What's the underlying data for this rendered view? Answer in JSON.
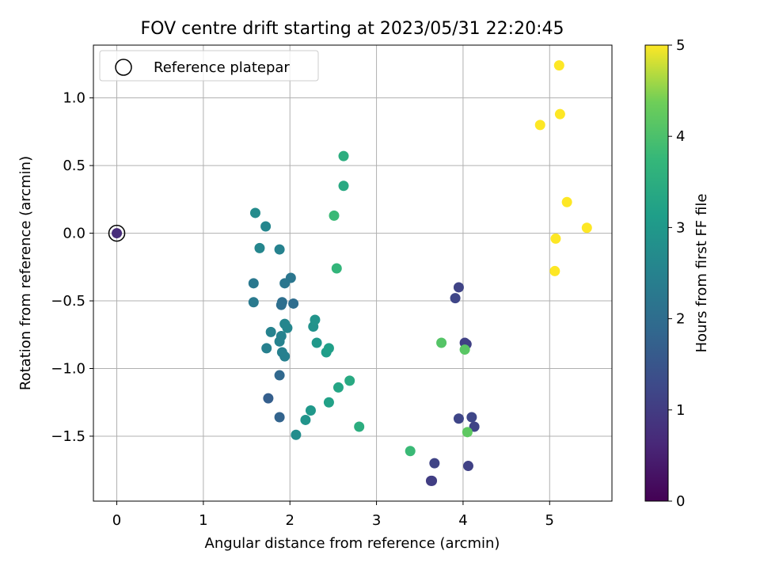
{
  "chart_data": {
    "type": "scatter",
    "title": "FOV centre drift starting at 2023/05/31 22:20:45",
    "xlabel": "Angular distance from reference (arcmin)",
    "ylabel": "Rotation from reference (arcmin)",
    "xlim": [
      -0.27,
      5.72
    ],
    "ylim": [
      -1.98,
      1.39
    ],
    "xticks": [
      0,
      1,
      2,
      3,
      4,
      5
    ],
    "yticks": [
      -1.5,
      -1.0,
      -0.5,
      0.0,
      0.5,
      1.0
    ],
    "xtick_labels": [
      "0",
      "1",
      "2",
      "3",
      "4",
      "5"
    ],
    "ytick_labels": [
      "−1.5",
      "−1.0",
      "−0.5",
      "0.0",
      "0.5",
      "1.0"
    ],
    "grid": true,
    "legend": {
      "placement": "top-left",
      "entries": [
        "Reference platepar"
      ]
    },
    "colorbar": {
      "label": "Hours from first FF file",
      "range": [
        0,
        5
      ],
      "ticks": [
        0,
        1,
        2,
        3,
        4,
        5
      ],
      "tick_labels": [
        "0",
        "1",
        "2",
        "3",
        "4",
        "5"
      ],
      "colormap": "viridis"
    },
    "reference_point": {
      "x": 0,
      "y": 0,
      "hours": 0.7
    },
    "points": [
      {
        "x": 0.0,
        "y": 0.0,
        "hours": 0.7
      },
      {
        "x": 3.63,
        "y": -1.83,
        "hours": 1.0
      },
      {
        "x": 3.64,
        "y": -1.83,
        "hours": 1.05
      },
      {
        "x": 4.06,
        "y": -1.72,
        "hours": 1.1
      },
      {
        "x": 3.67,
        "y": -1.7,
        "hours": 1.15
      },
      {
        "x": 4.13,
        "y": -1.43,
        "hours": 1.15
      },
      {
        "x": 4.1,
        "y": -1.36,
        "hours": 1.2
      },
      {
        "x": 3.95,
        "y": -1.37,
        "hours": 1.2
      },
      {
        "x": 4.02,
        "y": -0.81,
        "hours": 1.1
      },
      {
        "x": 4.04,
        "y": -0.82,
        "hours": 1.1
      },
      {
        "x": 3.91,
        "y": -0.48,
        "hours": 1.2
      },
      {
        "x": 3.95,
        "y": -0.4,
        "hours": 1.15
      },
      {
        "x": 1.75,
        "y": -1.22,
        "hours": 1.7
      },
      {
        "x": 1.88,
        "y": -1.36,
        "hours": 1.8
      },
      {
        "x": 1.88,
        "y": -1.05,
        "hours": 1.9
      },
      {
        "x": 2.04,
        "y": -0.52,
        "hours": 2.0
      },
      {
        "x": 1.9,
        "y": -0.53,
        "hours": 2.05
      },
      {
        "x": 1.91,
        "y": -0.51,
        "hours": 2.05
      },
      {
        "x": 2.01,
        "y": -0.33,
        "hours": 2.2
      },
      {
        "x": 1.94,
        "y": -0.37,
        "hours": 2.2
      },
      {
        "x": 1.58,
        "y": -0.37,
        "hours": 2.25
      },
      {
        "x": 1.58,
        "y": -0.51,
        "hours": 2.3
      },
      {
        "x": 1.88,
        "y": -0.12,
        "hours": 2.5
      },
      {
        "x": 1.65,
        "y": -0.11,
        "hours": 2.6
      },
      {
        "x": 1.72,
        "y": 0.05,
        "hours": 2.6
      },
      {
        "x": 1.6,
        "y": 0.15,
        "hours": 2.7
      },
      {
        "x": 1.94,
        "y": -0.67,
        "hours": 2.6
      },
      {
        "x": 1.97,
        "y": -0.7,
        "hours": 2.6
      },
      {
        "x": 1.78,
        "y": -0.73,
        "hours": 2.5
      },
      {
        "x": 1.9,
        "y": -0.76,
        "hours": 2.5
      },
      {
        "x": 1.88,
        "y": -0.8,
        "hours": 2.5
      },
      {
        "x": 1.73,
        "y": -0.85,
        "hours": 2.45
      },
      {
        "x": 1.91,
        "y": -0.88,
        "hours": 2.45
      },
      {
        "x": 1.94,
        "y": -0.91,
        "hours": 2.45
      },
      {
        "x": 2.07,
        "y": -1.49,
        "hours": 2.75
      },
      {
        "x": 2.18,
        "y": -1.38,
        "hours": 2.9
      },
      {
        "x": 2.24,
        "y": -1.31,
        "hours": 3.0
      },
      {
        "x": 2.27,
        "y": -0.69,
        "hours": 2.85
      },
      {
        "x": 2.29,
        "y": -0.64,
        "hours": 2.9
      },
      {
        "x": 2.31,
        "y": -0.81,
        "hours": 3.0
      },
      {
        "x": 2.42,
        "y": -0.88,
        "hours": 3.1
      },
      {
        "x": 2.45,
        "y": -0.85,
        "hours": 3.15
      },
      {
        "x": 2.45,
        "y": -1.25,
        "hours": 3.2
      },
      {
        "x": 2.56,
        "y": -1.14,
        "hours": 3.3
      },
      {
        "x": 2.69,
        "y": -1.09,
        "hours": 3.4
      },
      {
        "x": 2.8,
        "y": -1.43,
        "hours": 3.5
      },
      {
        "x": 2.54,
        "y": -0.26,
        "hours": 3.7
      },
      {
        "x": 2.51,
        "y": 0.13,
        "hours": 3.8
      },
      {
        "x": 2.62,
        "y": 0.35,
        "hours": 3.4
      },
      {
        "x": 2.62,
        "y": 0.57,
        "hours": 3.5
      },
      {
        "x": 3.39,
        "y": -1.61,
        "hours": 3.8
      },
      {
        "x": 3.75,
        "y": -0.81,
        "hours": 4.1
      },
      {
        "x": 4.02,
        "y": -0.86,
        "hours": 4.15
      },
      {
        "x": 4.05,
        "y": -1.47,
        "hours": 4.2
      },
      {
        "x": 4.89,
        "y": 0.8,
        "hours": 5.0
      },
      {
        "x": 5.11,
        "y": 1.24,
        "hours": 5.0
      },
      {
        "x": 5.12,
        "y": 0.88,
        "hours": 5.0
      },
      {
        "x": 5.2,
        "y": 0.23,
        "hours": 5.0
      },
      {
        "x": 5.07,
        "y": -0.04,
        "hours": 5.0
      },
      {
        "x": 5.43,
        "y": 0.04,
        "hours": 5.0
      },
      {
        "x": 5.06,
        "y": -0.28,
        "hours": 5.0
      }
    ]
  }
}
